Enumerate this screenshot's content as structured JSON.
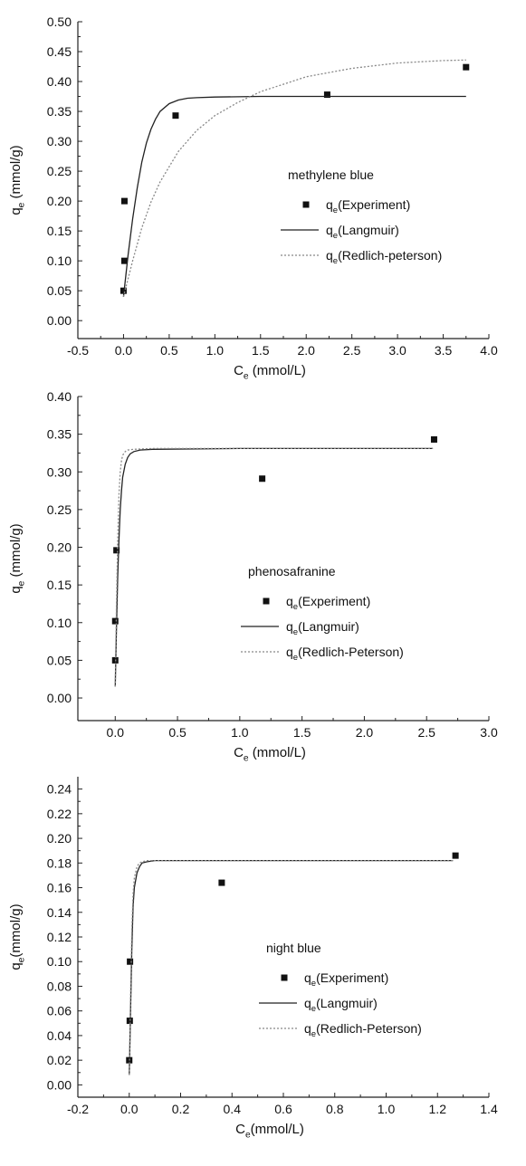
{
  "chart_data": [
    {
      "type": "scatter",
      "panel": "top",
      "xlabel": "C_e (mmol/L)",
      "ylabel": "q_e (mmol/g)",
      "xlim": [
        -0.5,
        4.0
      ],
      "ylim": [
        -0.03,
        0.5
      ],
      "xticks": [
        -0.5,
        0.0,
        0.5,
        1.0,
        1.5,
        2.0,
        2.5,
        3.0,
        3.5,
        4.0
      ],
      "xtick_labels": [
        "-0.5",
        "0.0",
        "0.5",
        "1.0",
        "1.5",
        "2.0",
        "2.5",
        "3.0",
        "3.5",
        "4.0"
      ],
      "yticks": [
        0.0,
        0.05,
        0.1,
        0.15,
        0.2,
        0.25,
        0.3,
        0.35,
        0.4,
        0.45,
        0.5
      ],
      "ytick_labels": [
        "0.00",
        "0.05",
        "0.10",
        "0.15",
        "0.20",
        "0.25",
        "0.30",
        "0.35",
        "0.40",
        "0.45",
        "0.50"
      ],
      "legend_title": "methylene blue",
      "legend_position": "right-middle",
      "series": [
        {
          "name": "q_e(Experiment)",
          "kind": "points",
          "color": "#111111",
          "x": [
            0.0,
            0.01,
            0.01,
            0.57,
            2.23,
            3.75
          ],
          "y": [
            0.05,
            0.1,
            0.2,
            0.343,
            0.378,
            0.424
          ]
        },
        {
          "name": "q_e(Langmuir)",
          "kind": "line",
          "style": "solid",
          "color": "#222222",
          "x": [
            0.0,
            0.05,
            0.1,
            0.15,
            0.2,
            0.25,
            0.3,
            0.35,
            0.4,
            0.5,
            0.6,
            0.7,
            0.8,
            1.0,
            1.5,
            2.0,
            3.0,
            3.75
          ],
          "y": [
            0.04,
            0.11,
            0.17,
            0.222,
            0.265,
            0.297,
            0.32,
            0.337,
            0.35,
            0.363,
            0.369,
            0.372,
            0.373,
            0.374,
            0.375,
            0.375,
            0.375,
            0.375
          ]
        },
        {
          "name": "q_e(Redlich-peterson)",
          "kind": "line",
          "style": "dotted",
          "color": "#888888",
          "x": [
            0.0,
            0.1,
            0.2,
            0.3,
            0.4,
            0.6,
            0.8,
            1.0,
            1.25,
            1.5,
            2.0,
            2.5,
            3.0,
            3.5,
            3.75
          ],
          "y": [
            0.04,
            0.1,
            0.155,
            0.198,
            0.232,
            0.283,
            0.318,
            0.343,
            0.365,
            0.383,
            0.408,
            0.422,
            0.431,
            0.435,
            0.436
          ]
        }
      ]
    },
    {
      "type": "scatter",
      "panel": "middle",
      "xlabel": "C_e (mmol/L)",
      "ylabel": "q_e (mmol/g)",
      "xlim": [
        -0.3,
        3.0
      ],
      "ylim": [
        -0.03,
        0.4
      ],
      "xticks": [
        0.0,
        0.5,
        1.0,
        1.5,
        2.0,
        2.5,
        3.0
      ],
      "xtick_labels": [
        "0.0",
        "0.5",
        "1.0",
        "1.5",
        "2.0",
        "2.5",
        "3.0"
      ],
      "yticks": [
        0.0,
        0.05,
        0.1,
        0.15,
        0.2,
        0.25,
        0.3,
        0.35,
        0.4
      ],
      "ytick_labels": [
        "0.00",
        "0.05",
        "0.10",
        "0.15",
        "0.20",
        "0.25",
        "0.30",
        "0.35",
        "0.40"
      ],
      "legend_title": "phenosafranine",
      "legend_position": "right-middle",
      "series": [
        {
          "name": "q_e(Experiment)",
          "kind": "points",
          "color": "#111111",
          "x": [
            0.0,
            0.0,
            0.01,
            1.18,
            2.56
          ],
          "y": [
            0.05,
            0.102,
            0.196,
            0.291,
            0.343
          ]
        },
        {
          "name": "q_e(Langmuir)",
          "kind": "line",
          "style": "solid",
          "color": "#222222",
          "x": [
            0.0,
            0.01,
            0.02,
            0.03,
            0.04,
            0.05,
            0.06,
            0.08,
            0.1,
            0.12,
            0.15,
            0.2,
            0.3,
            1.0,
            2.55
          ],
          "y": [
            0.015,
            0.09,
            0.16,
            0.21,
            0.25,
            0.275,
            0.293,
            0.31,
            0.319,
            0.324,
            0.327,
            0.329,
            0.33,
            0.331,
            0.331
          ]
        },
        {
          "name": "q_e(Redlich-Peterson)",
          "kind": "line",
          "style": "dotted",
          "color": "#888888",
          "x": [
            0.0,
            0.01,
            0.02,
            0.03,
            0.04,
            0.05,
            0.06,
            0.08,
            0.1,
            0.15,
            0.3,
            1.0,
            2.55
          ],
          "y": [
            0.015,
            0.12,
            0.21,
            0.27,
            0.3,
            0.315,
            0.322,
            0.327,
            0.329,
            0.33,
            0.331,
            0.331,
            0.331
          ]
        }
      ]
    },
    {
      "type": "scatter",
      "panel": "bottom",
      "xlabel": "C_e(mmol/L)",
      "ylabel": "q_e(mmol/g)",
      "xlim": [
        -0.2,
        1.4
      ],
      "ylim": [
        -0.01,
        0.25
      ],
      "xticks": [
        -0.2,
        0.0,
        0.2,
        0.4,
        0.6,
        0.8,
        1.0,
        1.2,
        1.4
      ],
      "xtick_labels": [
        "-0.2",
        "0.0",
        "0.2",
        "0.4",
        "0.6",
        "0.8",
        "1.0",
        "1.2",
        "1.4"
      ],
      "yticks": [
        0.0,
        0.02,
        0.04,
        0.06,
        0.08,
        0.1,
        0.12,
        0.14,
        0.16,
        0.18,
        0.2,
        0.22,
        0.24
      ],
      "ytick_labels": [
        "0.00",
        "0.02",
        "0.04",
        "0.06",
        "0.08",
        "0.10",
        "0.12",
        "0.14",
        "0.16",
        "0.18",
        "0.20",
        "0.22",
        "0.24"
      ],
      "legend_title": "night blue",
      "legend_position": "right-middle",
      "series": [
        {
          "name": "q_e(Experiment)",
          "kind": "points",
          "color": "#111111",
          "x": [
            0.0,
            0.002,
            0.003,
            0.36,
            1.27
          ],
          "y": [
            0.02,
            0.052,
            0.1,
            0.164,
            0.186
          ]
        },
        {
          "name": "q_e(Langmuir)",
          "kind": "line",
          "style": "solid",
          "color": "#222222",
          "x": [
            0.0,
            0.005,
            0.01,
            0.015,
            0.02,
            0.03,
            0.04,
            0.05,
            0.07,
            0.1,
            0.3,
            1.26
          ],
          "y": [
            0.008,
            0.06,
            0.11,
            0.145,
            0.16,
            0.172,
            0.177,
            0.18,
            0.181,
            0.182,
            0.182,
            0.182
          ]
        },
        {
          "name": "q_e(Redlich-Peterson)",
          "kind": "line",
          "style": "dotted",
          "color": "#888888",
          "x": [
            0.0,
            0.005,
            0.01,
            0.015,
            0.02,
            0.03,
            0.04,
            0.05,
            0.07,
            0.1,
            0.3,
            1.26
          ],
          "y": [
            0.008,
            0.07,
            0.125,
            0.155,
            0.168,
            0.177,
            0.18,
            0.181,
            0.182,
            0.182,
            0.182,
            0.182
          ]
        }
      ]
    }
  ]
}
